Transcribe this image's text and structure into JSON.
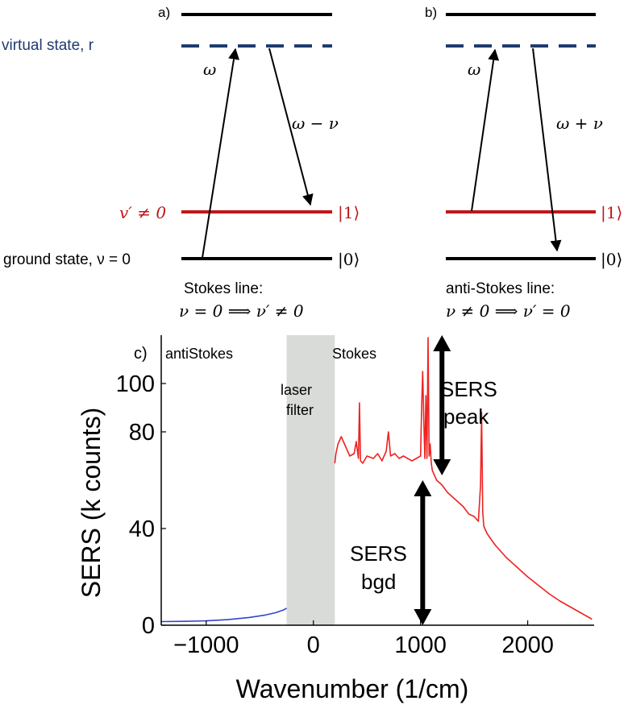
{
  "colors": {
    "level": "#000000",
    "virtual": "#1f3b70",
    "excited": "#c0161a",
    "stokes_curve": "#ee2222",
    "antistokes_curve": "#3344cc",
    "filter_band": "#d8dbd8"
  },
  "panel_a": {
    "label": "a)",
    "virtual_label": "virtual state, r",
    "excited_label": "v′ ≠ 0",
    "ground_label": "ground state, ν = 0",
    "ket1": "|1⟩",
    "ket0": "|0⟩",
    "omega": "ω",
    "scattered": "ω − ν",
    "caption_line1": "Stokes line:",
    "caption_line2": "ν = 0 ⟹ ν′ ≠ 0"
  },
  "panel_b": {
    "label": "b)",
    "ket1": "|1⟩",
    "ket0": "|0⟩",
    "omega": "ω",
    "scattered": "ω + ν",
    "caption_line1": "anti-Stokes line:",
    "caption_line2": "ν ≠ 0 ⟹ ν′ = 0"
  },
  "chart_data": {
    "type": "line",
    "panel_label": "c)",
    "xlabel": "Wavenumber (1/cm)",
    "ylabel": "SERS (k counts)",
    "xlim": [
      -1420,
      2620
    ],
    "ylim": [
      0,
      120
    ],
    "xticks": [
      -1000,
      0,
      1000,
      2000
    ],
    "yticks": [
      0,
      40,
      80,
      100
    ],
    "region_labels": {
      "antistokes": "antiStokes",
      "stokes": "Stokes",
      "filter_line1": "laser",
      "filter_line2": "filter"
    },
    "filter_band": [
      -250,
      200
    ],
    "peak_label_line1": "SERS",
    "peak_label_line2": "peak",
    "bgd_label_line1": "SERS",
    "bgd_label_line2": "bgd",
    "peak_arrow": {
      "x": 1200,
      "y_from": 62,
      "y_to": 120
    },
    "bgd_arrow": {
      "x": 1020,
      "y_from": 0,
      "y_to": 60
    },
    "series": [
      {
        "key": "antistokes",
        "x": [
          -1420,
          -1200,
          -1000,
          -800,
          -600,
          -450,
          -350,
          -280,
          -250
        ],
        "y": [
          1.5,
          1.6,
          1.8,
          2.3,
          3.2,
          4.2,
          5.2,
          6.3,
          7.0
        ]
      },
      {
        "key": "stokes",
        "x": [
          200,
          210,
          230,
          260,
          300,
          340,
          380,
          400,
          420,
          430,
          440,
          460,
          500,
          560,
          600,
          640,
          680,
          700,
          720,
          760,
          800,
          840,
          880,
          920,
          960,
          1000,
          1010,
          1020,
          1030,
          1040,
          1050,
          1060,
          1070,
          1080,
          1090,
          1100,
          1110,
          1150,
          1200,
          1250,
          1300,
          1350,
          1400,
          1450,
          1500,
          1540,
          1560,
          1570,
          1580,
          1590,
          1600,
          1620,
          1650,
          1700,
          1800,
          1900,
          2000,
          2100,
          2200,
          2300,
          2400,
          2500,
          2560,
          2600
        ],
        "y": [
          67,
          71,
          75,
          78,
          74,
          70,
          71,
          76,
          69,
          92,
          68,
          67,
          70,
          69,
          71,
          68,
          72,
          80,
          70,
          71,
          69,
          70,
          69,
          68,
          69,
          70,
          90,
          105,
          85,
          69,
          95,
          69,
          119,
          70,
          75,
          67,
          64,
          60,
          58,
          55,
          53,
          51,
          49,
          46,
          45,
          43,
          58,
          88,
          47,
          41,
          40,
          38,
          36,
          33,
          28,
          24,
          20,
          16.5,
          13,
          10,
          7.5,
          5,
          3.5,
          2.5
        ]
      }
    ]
  }
}
